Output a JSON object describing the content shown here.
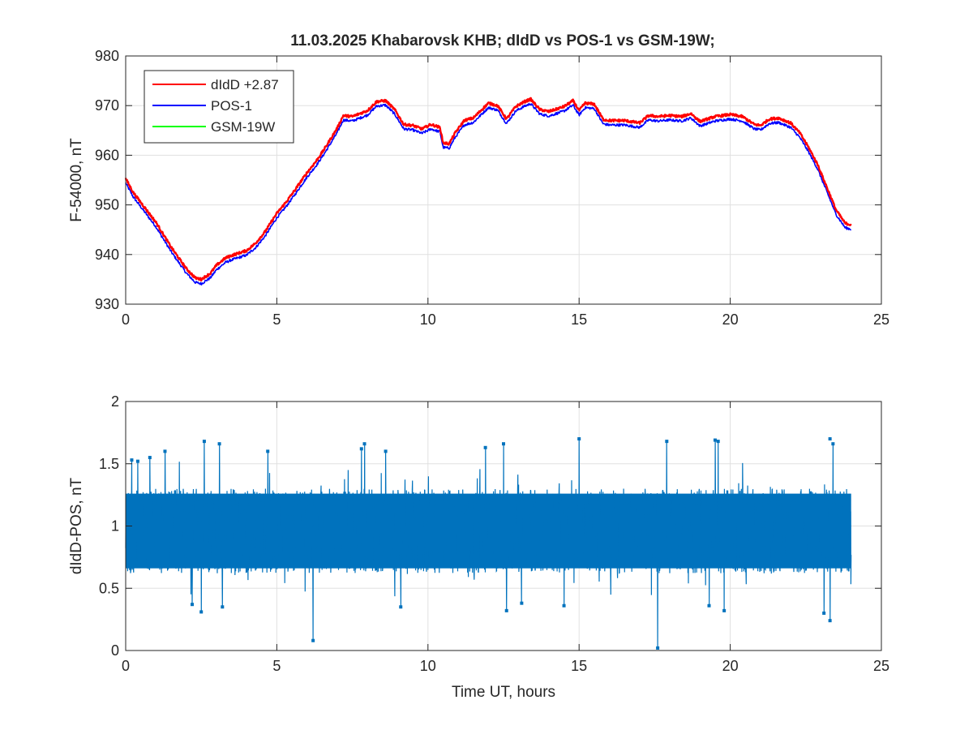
{
  "figure_title": "11.03.2025  Khabarovsk KHB; dIdD vs POS-1 vs GSM-19W;",
  "colors": {
    "didd": "#ff0000",
    "pos": "#0000ff",
    "gsm": "#00ff00",
    "diff": "#0072bd",
    "grid": "#e0e0e0",
    "axis": "#262626"
  },
  "chart_data": [
    {
      "type": "line",
      "title": "11.03.2025  Khabarovsk KHB; dIdD vs POS-1 vs GSM-19W;",
      "xlabel": "",
      "ylabel": "F-54000, nT",
      "xlim": [
        0,
        25
      ],
      "ylim": [
        930,
        980
      ],
      "xticks": [
        0,
        5,
        10,
        15,
        20,
        25
      ],
      "yticks": [
        930,
        940,
        950,
        960,
        970,
        980
      ],
      "grid": true,
      "legend_position": "top-left",
      "series": [
        {
          "name": "dIdD +2.87",
          "color": "#ff0000",
          "x": [
            0,
            0.25,
            0.5,
            1.0,
            1.5,
            2.0,
            2.3,
            2.5,
            2.8,
            3.0,
            3.3,
            3.5,
            4.0,
            4.3,
            4.6,
            5.0,
            5.3,
            5.6,
            6.0,
            6.3,
            6.6,
            7.0,
            7.2,
            7.5,
            8.0,
            8.3,
            8.6,
            8.9,
            9.2,
            9.5,
            9.8,
            10.1,
            10.4,
            10.5,
            10.7,
            10.9,
            11.2,
            11.5,
            11.8,
            12.0,
            12.3,
            12.6,
            12.9,
            13.2,
            13.4,
            13.7,
            14.0,
            14.5,
            14.8,
            15.0,
            15.2,
            15.5,
            15.8,
            16.0,
            16.5,
            17.0,
            17.3,
            17.6,
            18.0,
            18.4,
            18.7,
            19.0,
            19.5,
            20.0,
            20.4,
            20.8,
            21.0,
            21.3,
            21.6,
            22.0,
            22.3,
            22.6,
            22.9,
            23.2,
            23.5,
            23.8,
            24.0
          ],
          "y": [
            955.3,
            952.5,
            950.5,
            946.5,
            941.5,
            937.2,
            935.3,
            935.0,
            936.2,
            937.8,
            939.3,
            939.8,
            940.8,
            942.3,
            944.5,
            948.3,
            950.5,
            953.0,
            956.5,
            958.8,
            961.5,
            965.5,
            968.0,
            967.8,
            969.0,
            970.8,
            971.0,
            969.2,
            966.2,
            966.0,
            965.3,
            966.2,
            965.6,
            962.5,
            962.3,
            964.5,
            967.0,
            967.5,
            969.3,
            970.5,
            970.0,
            967.3,
            969.8,
            970.8,
            971.3,
            969.2,
            968.8,
            969.8,
            971.0,
            969.0,
            970.5,
            970.3,
            967.2,
            967.0,
            967.0,
            966.5,
            968.0,
            967.8,
            968.0,
            967.8,
            968.4,
            966.8,
            967.8,
            968.2,
            967.8,
            966.2,
            966.0,
            967.3,
            967.5,
            966.5,
            964.5,
            961.5,
            958.0,
            953.5,
            949.0,
            946.3,
            946.0
          ]
        },
        {
          "name": "POS-1",
          "color": "#0000ff",
          "x": [
            0,
            0.25,
            0.5,
            1.0,
            1.5,
            2.0,
            2.3,
            2.5,
            2.8,
            3.0,
            3.3,
            3.5,
            4.0,
            4.3,
            4.6,
            5.0,
            5.3,
            5.6,
            6.0,
            6.3,
            6.6,
            7.0,
            7.2,
            7.5,
            8.0,
            8.3,
            8.6,
            8.9,
            9.2,
            9.5,
            9.8,
            10.1,
            10.4,
            10.5,
            10.7,
            10.9,
            11.2,
            11.5,
            11.8,
            12.0,
            12.3,
            12.6,
            12.9,
            13.2,
            13.4,
            13.7,
            14.0,
            14.5,
            14.8,
            15.0,
            15.2,
            15.5,
            15.8,
            16.0,
            16.5,
            17.0,
            17.3,
            17.6,
            18.0,
            18.4,
            18.7,
            19.0,
            19.5,
            20.0,
            20.4,
            20.8,
            21.0,
            21.3,
            21.6,
            22.0,
            22.3,
            22.6,
            22.9,
            23.2,
            23.5,
            23.8,
            24.0
          ],
          "y": [
            954.4,
            951.6,
            949.6,
            945.6,
            940.6,
            936.3,
            934.4,
            934.1,
            935.3,
            936.9,
            938.4,
            938.9,
            939.9,
            941.4,
            943.6,
            947.4,
            949.6,
            952.1,
            955.6,
            957.9,
            960.6,
            964.6,
            967.1,
            966.9,
            968.1,
            969.9,
            970.1,
            968.3,
            965.3,
            965.1,
            964.4,
            965.3,
            964.7,
            961.6,
            961.4,
            963.6,
            966.1,
            966.6,
            968.4,
            969.6,
            969.1,
            966.4,
            968.9,
            969.9,
            970.4,
            968.3,
            967.9,
            968.9,
            970.1,
            968.1,
            969.6,
            969.4,
            966.3,
            966.1,
            966.1,
            965.6,
            967.1,
            966.9,
            967.1,
            966.9,
            967.5,
            965.9,
            966.9,
            967.3,
            966.9,
            965.3,
            965.1,
            966.4,
            966.6,
            965.6,
            963.6,
            960.6,
            957.1,
            952.6,
            948.1,
            945.4,
            945.1
          ]
        },
        {
          "name": "GSM-19W",
          "color": "#00ff00",
          "x": [],
          "y": []
        }
      ]
    },
    {
      "type": "line",
      "title": "",
      "xlabel": "Time UT, hours",
      "ylabel": "dIdD-POS, nT",
      "xlim": [
        0,
        25
      ],
      "ylim": [
        0,
        2
      ],
      "xticks": [
        0,
        5,
        10,
        15,
        20,
        25
      ],
      "yticks": [
        0,
        0.5,
        1,
        1.5,
        2
      ],
      "grid": true,
      "series": [
        {
          "name": "",
          "color": "#0072bd",
          "x_start": 0,
          "x_end": 24,
          "band": {
            "lower": 0.62,
            "upper": 1.3,
            "mean": 0.93
          },
          "outliers": [
            {
              "x": 0.2,
              "y": 1.53
            },
            {
              "x": 0.4,
              "y": 1.52
            },
            {
              "x": 0.8,
              "y": 1.55
            },
            {
              "x": 1.3,
              "y": 1.6
            },
            {
              "x": 2.6,
              "y": 1.68
            },
            {
              "x": 3.1,
              "y": 1.66
            },
            {
              "x": 4.7,
              "y": 1.6
            },
            {
              "x": 7.8,
              "y": 1.62
            },
            {
              "x": 7.9,
              "y": 1.66
            },
            {
              "x": 8.6,
              "y": 1.6
            },
            {
              "x": 11.9,
              "y": 1.63
            },
            {
              "x": 12.5,
              "y": 1.66
            },
            {
              "x": 15.0,
              "y": 1.7
            },
            {
              "x": 17.9,
              "y": 1.68
            },
            {
              "x": 19.5,
              "y": 1.69
            },
            {
              "x": 19.6,
              "y": 1.68
            },
            {
              "x": 23.3,
              "y": 1.7
            },
            {
              "x": 23.4,
              "y": 1.66
            },
            {
              "x": 2.2,
              "y": 0.37
            },
            {
              "x": 2.5,
              "y": 0.31
            },
            {
              "x": 3.2,
              "y": 0.35
            },
            {
              "x": 6.2,
              "y": 0.08
            },
            {
              "x": 9.1,
              "y": 0.35
            },
            {
              "x": 12.6,
              "y": 0.32
            },
            {
              "x": 13.1,
              "y": 0.38
            },
            {
              "x": 14.5,
              "y": 0.36
            },
            {
              "x": 17.6,
              "y": 0.02
            },
            {
              "x": 19.3,
              "y": 0.36
            },
            {
              "x": 19.8,
              "y": 0.32
            },
            {
              "x": 23.1,
              "y": 0.3
            },
            {
              "x": 23.3,
              "y": 0.24
            }
          ]
        }
      ]
    }
  ]
}
